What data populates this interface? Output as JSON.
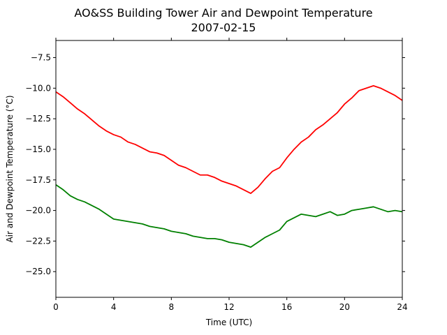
{
  "chart_data": {
    "type": "line",
    "title": "AO&SS Building Tower Air and Dewpoint Temperature",
    "subtitle": "2007-02-15",
    "xlabel": "Time (UTC)",
    "ylabel": "Air and Dewpoint Temperature (°C)",
    "xlim": [
      0,
      24
    ],
    "ylim": [
      -27.1,
      -6.1
    ],
    "xticks": [
      0,
      4,
      8,
      12,
      16,
      20,
      24
    ],
    "xtick_labels": [
      "0",
      "4",
      "8",
      "12",
      "16",
      "20",
      "24"
    ],
    "yticks": [
      -25.0,
      -22.5,
      -20.0,
      -17.5,
      -15.0,
      -12.5,
      -10.0,
      -7.5
    ],
    "ytick_labels": [
      "−25.0",
      "−22.5",
      "−20.0",
      "−17.5",
      "−15.0",
      "−12.5",
      "−10.0",
      "−7.5"
    ],
    "grid": false,
    "legend": "none",
    "series": [
      {
        "color": "#ff0000",
        "x": [
          0,
          0.5,
          1,
          1.5,
          2,
          2.5,
          3,
          3.5,
          4,
          4.5,
          5,
          5.5,
          6,
          6.5,
          7,
          7.5,
          8,
          8.5,
          9,
          9.5,
          10,
          10.5,
          11,
          11.5,
          12,
          12.5,
          13,
          13.5,
          14,
          14.5,
          15,
          15.5,
          16,
          16.5,
          17,
          17.5,
          18,
          18.5,
          19,
          19.5,
          20,
          20.5,
          21,
          21.5,
          22,
          22.5,
          23,
          23.5,
          24
        ],
        "y": [
          -10.3,
          -10.7,
          -11.2,
          -11.7,
          -12.1,
          -12.6,
          -13.1,
          -13.5,
          -13.8,
          -14.0,
          -14.4,
          -14.6,
          -14.9,
          -15.2,
          -15.3,
          -15.5,
          -15.9,
          -16.3,
          -16.5,
          -16.8,
          -17.1,
          -17.1,
          -17.3,
          -17.6,
          -17.8,
          -18.0,
          -18.3,
          -18.6,
          -18.1,
          -17.4,
          -16.8,
          -16.5,
          -15.7,
          -15.0,
          -14.4,
          -14.0,
          -13.4,
          -13.0,
          -12.5,
          -12.0,
          -11.3,
          -10.8,
          -10.2,
          -10.0,
          -9.8,
          -10.0,
          -10.3,
          -10.6,
          -11.0
        ]
      },
      {
        "color": "#008000",
        "x": [
          0,
          0.5,
          1,
          1.5,
          2,
          2.5,
          3,
          3.5,
          4,
          4.5,
          5,
          5.5,
          6,
          6.5,
          7,
          7.5,
          8,
          8.5,
          9,
          9.5,
          10,
          10.5,
          11,
          11.5,
          12,
          12.5,
          13,
          13.5,
          14,
          14.5,
          15,
          15.5,
          16,
          16.5,
          17,
          17.5,
          18,
          18.5,
          19,
          19.5,
          20,
          20.5,
          21,
          21.5,
          22,
          22.5,
          23,
          23.5,
          24
        ],
        "y": [
          -17.9,
          -18.3,
          -18.8,
          -19.1,
          -19.3,
          -19.6,
          -19.9,
          -20.3,
          -20.7,
          -20.8,
          -20.9,
          -21.0,
          -21.1,
          -21.3,
          -21.4,
          -21.5,
          -21.7,
          -21.8,
          -21.9,
          -22.1,
          -22.2,
          -22.3,
          -22.3,
          -22.4,
          -22.6,
          -22.7,
          -22.8,
          -23.0,
          -22.6,
          -22.2,
          -21.9,
          -21.6,
          -20.9,
          -20.6,
          -20.3,
          -20.4,
          -20.5,
          -20.3,
          -20.1,
          -20.4,
          -20.3,
          -20.0,
          -19.9,
          -19.8,
          -19.7,
          -19.9,
          -20.1,
          -20.0,
          -20.1
        ]
      }
    ]
  }
}
